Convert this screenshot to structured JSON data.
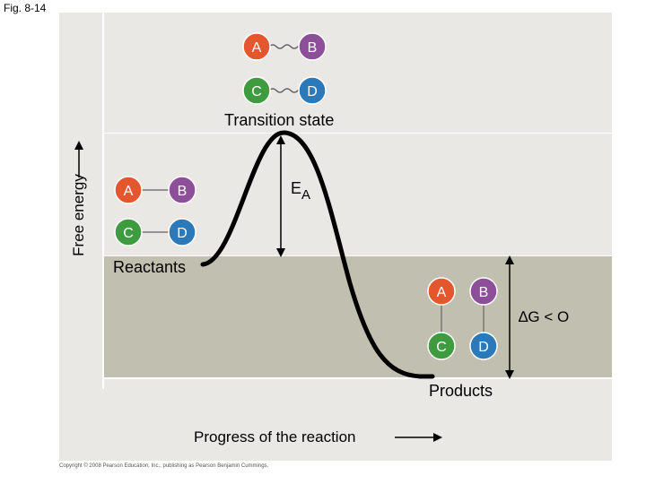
{
  "figure_label": "Fig. 8-14",
  "axes": {
    "y_label": "Free energy",
    "x_label": "Progress of the reaction"
  },
  "labels": {
    "transition_state": "Transition state",
    "activation_energy_main": "E",
    "activation_energy_sub": "A",
    "reactants": "Reactants",
    "products": "Products",
    "delta_g": "∆G < O"
  },
  "atoms": {
    "a": "A",
    "b": "B",
    "c": "C",
    "d": "D"
  },
  "colors": {
    "atom_a": "#e4572e",
    "atom_b": "#8e4f9a",
    "atom_c": "#3f9b3f",
    "atom_d": "#2b79b8",
    "curve": "#000000",
    "product_band": "#c1bfaf",
    "background": "#eae8e4"
  },
  "copyright": "Copyright © 2008 Pearson Education, Inc., publishing as Pearson Benjamin Cummings."
}
